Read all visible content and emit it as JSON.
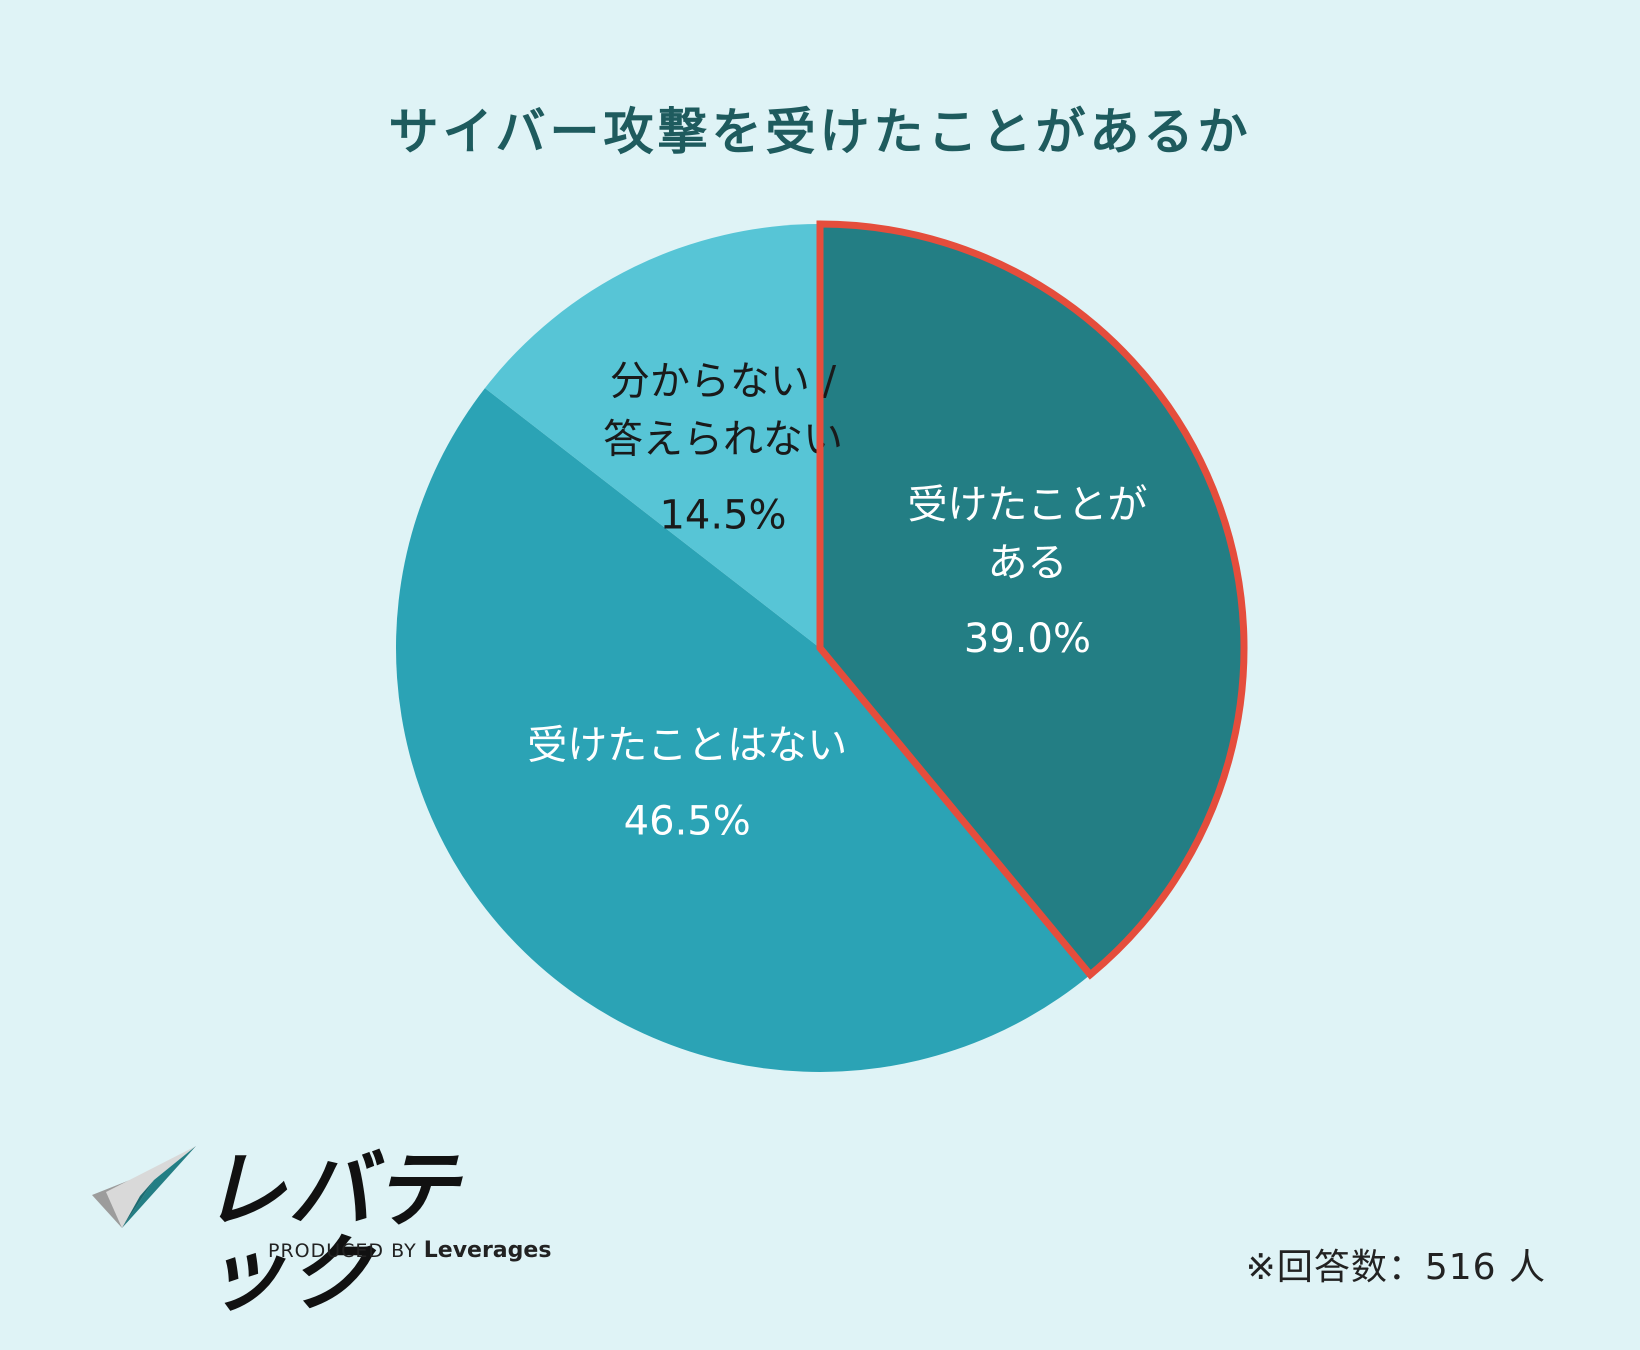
{
  "title": "サイバー攻撃を受けたことがあるか",
  "chart_data": {
    "type": "pie",
    "unit": "%",
    "slices": [
      {
        "label_lines": [
          "受けたことが",
          "ある"
        ],
        "value": 39.0,
        "value_label": "39.0%",
        "color": "#237e84",
        "text_color": "#ffffff",
        "highlight": true,
        "highlight_color": "#e54d3c"
      },
      {
        "label_lines": [
          "受けたことはない"
        ],
        "value": 46.5,
        "value_label": "46.5%",
        "color": "#2ba3b5",
        "text_color": "#ffffff",
        "highlight": false
      },
      {
        "label_lines": [
          "分からない /",
          "答えられない"
        ],
        "value": 14.5,
        "value_label": "14.5%",
        "color": "#57c5d6",
        "text_color": "#1a1a1a",
        "highlight": false
      }
    ]
  },
  "logo": {
    "wordmark": "レバテック",
    "produced_by": "PRODUCED BY",
    "company": "Leverages"
  },
  "note": "※回答数：516 人"
}
